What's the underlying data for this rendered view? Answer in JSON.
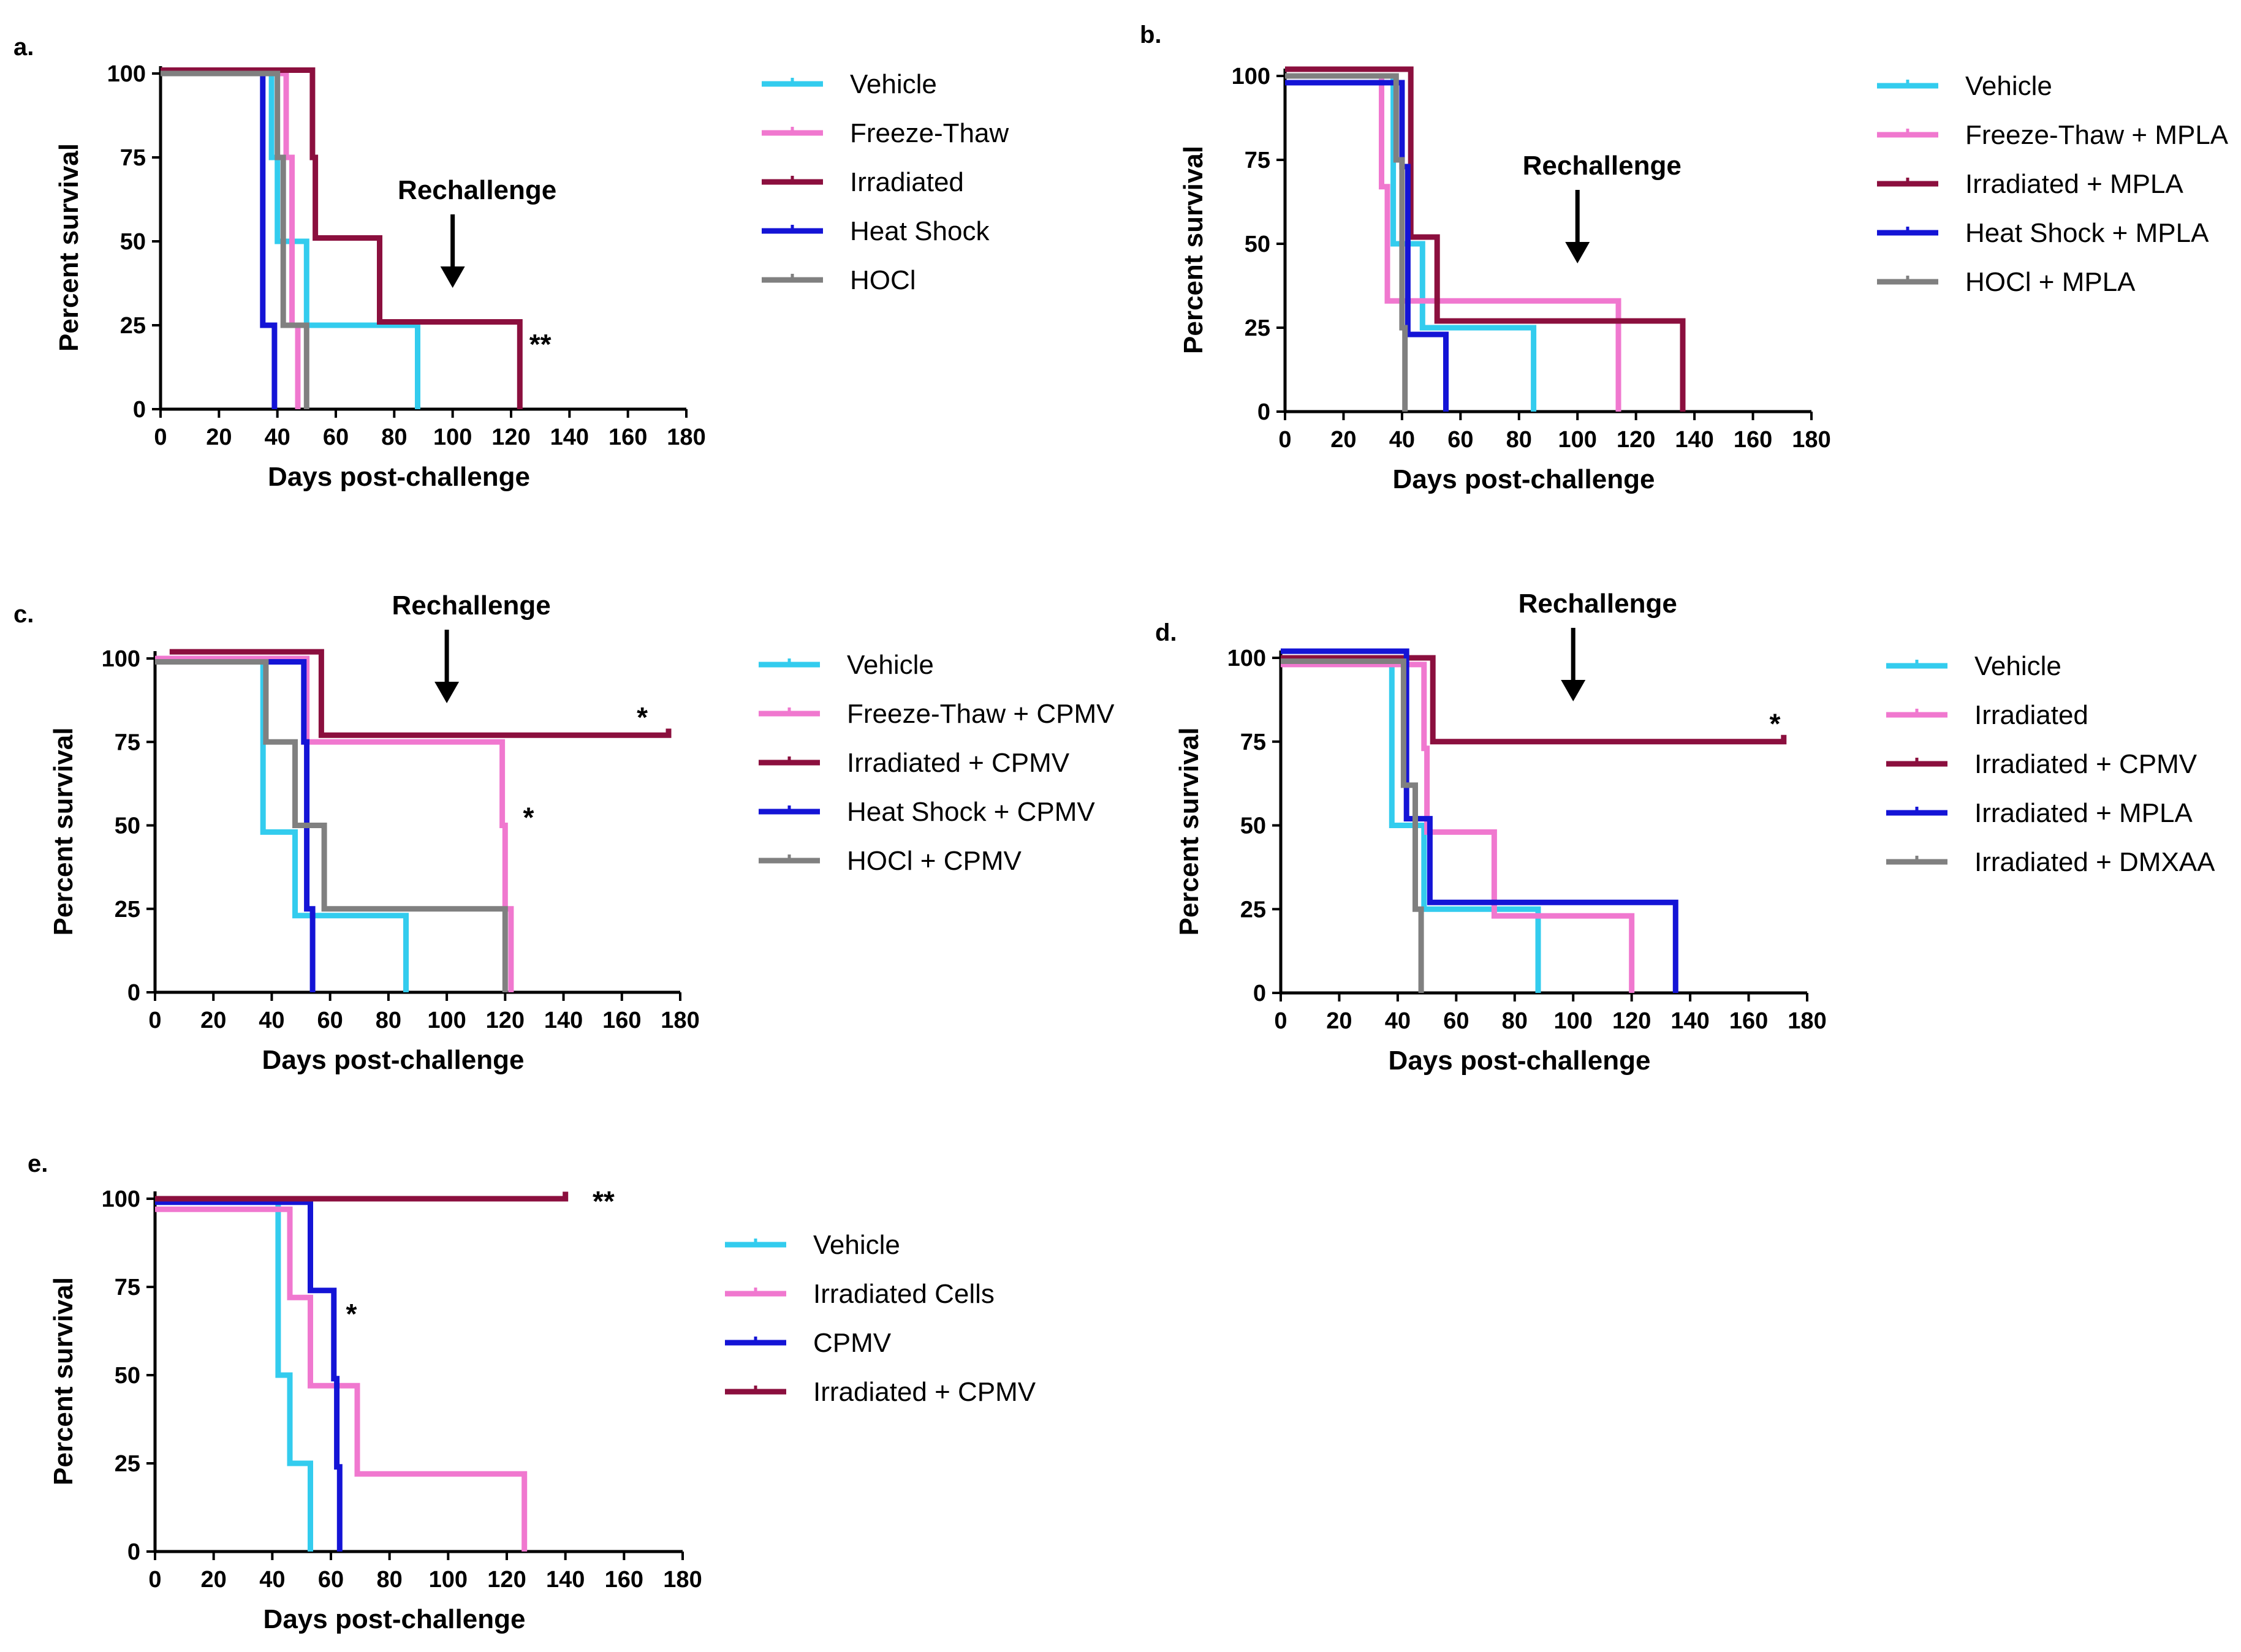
{
  "colors": {
    "cyan": "#33ccee",
    "pink": "#f078cf",
    "maroon": "#8b0f3e",
    "blue": "#1414d6",
    "gray": "#808080",
    "axis": "#000000"
  },
  "chart_data": [
    {
      "type": "line",
      "step": true,
      "panel": "a.",
      "xlabel": "Days post-challenge",
      "ylabel": "Percent survival",
      "xlim": [
        0,
        180
      ],
      "ylim": [
        0,
        100
      ],
      "xticks": [
        0,
        20,
        40,
        60,
        80,
        100,
        120,
        140,
        160,
        180
      ],
      "yticks": [
        0,
        25,
        50,
        75,
        100
      ],
      "xtick_labels": [
        "0",
        "20",
        "40",
        "60",
        "80",
        "100",
        "120",
        "140",
        "160",
        "180"
      ],
      "ytick_labels": [
        "0",
        "25",
        "50",
        "75",
        "100"
      ],
      "annotation": {
        "text": "Rechallenge",
        "x": 100
      },
      "significance": [
        {
          "text": "**",
          "x": 130,
          "y": 19
        }
      ],
      "series": [
        {
          "name": "Vehicle",
          "color": "cyan",
          "x": [
            0,
            38,
            38,
            40,
            40,
            50,
            50,
            88,
            88
          ],
          "y": [
            100,
            100,
            75,
            75,
            50,
            50,
            25,
            25,
            0
          ]
        },
        {
          "name": "Freeze-Thaw",
          "color": "pink",
          "x": [
            0,
            43,
            43,
            45,
            45,
            47,
            47
          ],
          "y": [
            100,
            100,
            75,
            75,
            25,
            25,
            0
          ]
        },
        {
          "name": "Irradiated",
          "color": "maroon",
          "x": [
            0,
            52,
            52,
            53,
            53,
            75,
            75,
            123,
            123
          ],
          "y": [
            101,
            101,
            75,
            75,
            51,
            51,
            26,
            26,
            0
          ]
        },
        {
          "name": "Heat Shock",
          "color": "blue",
          "x": [
            0,
            35,
            35,
            38,
            38,
            39,
            39
          ],
          "y": [
            100,
            100,
            25,
            25,
            25,
            25,
            0
          ]
        },
        {
          "name": "HOCl",
          "color": "gray",
          "x": [
            0,
            40,
            40,
            42,
            42,
            50,
            50
          ],
          "y": [
            100,
            100,
            75,
            75,
            25,
            25,
            0
          ]
        }
      ]
    },
    {
      "type": "line",
      "step": true,
      "panel": "b.",
      "xlabel": "Days post-challenge",
      "ylabel": "Percent survival",
      "xlim": [
        0,
        180
      ],
      "ylim": [
        0,
        100
      ],
      "xticks": [
        0,
        20,
        40,
        60,
        80,
        100,
        120,
        140,
        160,
        180
      ],
      "yticks": [
        0,
        25,
        50,
        75,
        100
      ],
      "xtick_labels": [
        "0",
        "20",
        "40",
        "60",
        "80",
        "100",
        "120",
        "140",
        "160",
        "180"
      ],
      "ytick_labels": [
        "0",
        "25",
        "50",
        "75",
        "100"
      ],
      "annotation": {
        "text": "Rechallenge",
        "x": 100
      },
      "significance": [],
      "series": [
        {
          "name": "Vehicle",
          "color": "cyan",
          "x": [
            0,
            37,
            37,
            47,
            47,
            85,
            85
          ],
          "y": [
            100,
            100,
            50,
            50,
            25,
            25,
            0
          ]
        },
        {
          "name": "Freeze-Thaw + MPLA",
          "color": "pink",
          "x": [
            0,
            33,
            33,
            35,
            35,
            114,
            114
          ],
          "y": [
            100,
            100,
            67,
            67,
            33,
            33,
            0
          ]
        },
        {
          "name": "Irradiated + MPLA",
          "color": "maroon",
          "x": [
            0,
            43,
            43,
            52,
            52,
            136,
            136
          ],
          "y": [
            102,
            102,
            52,
            52,
            27,
            27,
            0
          ]
        },
        {
          "name": "Heat Shock + MPLA",
          "color": "blue",
          "x": [
            0,
            40,
            40,
            42,
            42,
            55,
            55
          ],
          "y": [
            98,
            98,
            73,
            73,
            23,
            23,
            0
          ]
        },
        {
          "name": "HOCl + MPLA",
          "color": "gray",
          "x": [
            0,
            38,
            38,
            40,
            40,
            41,
            41
          ],
          "y": [
            100,
            100,
            75,
            75,
            25,
            25,
            0
          ]
        }
      ]
    },
    {
      "type": "line",
      "step": true,
      "panel": "c.",
      "xlabel": "Days post-challenge",
      "ylabel": "Percent survival",
      "xlim": [
        0,
        180
      ],
      "ylim": [
        0,
        100
      ],
      "xticks": [
        0,
        20,
        40,
        60,
        80,
        100,
        120,
        140,
        160,
        180
      ],
      "yticks": [
        0,
        25,
        50,
        75,
        100
      ],
      "xtick_labels": [
        "0",
        "20",
        "40",
        "60",
        "80",
        "100",
        "120",
        "140",
        "160",
        "180"
      ],
      "ytick_labels": [
        "0",
        "25",
        "50",
        "75",
        "100"
      ],
      "annotation": {
        "text": "Rechallenge",
        "x": 100
      },
      "significance": [
        {
          "text": "*",
          "x": 167,
          "y": 82
        },
        {
          "text": "*",
          "x": 128,
          "y": 52
        }
      ],
      "series": [
        {
          "name": "Vehicle",
          "color": "cyan",
          "x": [
            0,
            37,
            37,
            48,
            48,
            86,
            86
          ],
          "y": [
            99,
            99,
            48,
            48,
            23,
            23,
            0
          ]
        },
        {
          "name": "Freeze-Thaw + CPMV",
          "color": "pink",
          "x": [
            0,
            52,
            52,
            119,
            119,
            120,
            120,
            122,
            122
          ],
          "y": [
            100,
            100,
            75,
            75,
            50,
            50,
            25,
            25,
            0
          ]
        },
        {
          "name": "Irradiated + CPMV",
          "color": "maroon",
          "x": [
            5,
            57,
            57,
            176,
            176
          ],
          "y": [
            102,
            102,
            77,
            77,
            79
          ]
        },
        {
          "name": "Heat Shock + CPMV",
          "color": "blue",
          "x": [
            0,
            51,
            51,
            52,
            52,
            54,
            54
          ],
          "y": [
            99,
            99,
            75,
            75,
            25,
            25,
            0
          ]
        },
        {
          "name": "HOCl + CPMV",
          "color": "gray",
          "x": [
            0,
            38,
            38,
            48,
            48,
            58,
            58,
            120,
            120
          ],
          "y": [
            99,
            99,
            75,
            75,
            50,
            50,
            25,
            25,
            0
          ]
        }
      ]
    },
    {
      "type": "line",
      "step": true,
      "panel": "d.",
      "xlabel": "Days post-challenge",
      "ylabel": "Percent survival",
      "xlim": [
        0,
        180
      ],
      "ylim": [
        0,
        100
      ],
      "xticks": [
        0,
        20,
        40,
        60,
        80,
        100,
        120,
        140,
        160,
        180
      ],
      "yticks": [
        0,
        25,
        50,
        75,
        100
      ],
      "xtick_labels": [
        "0",
        "20",
        "40",
        "60",
        "80",
        "100",
        "120",
        "140",
        "160",
        "180"
      ],
      "ytick_labels": [
        "0",
        "25",
        "50",
        "75",
        "100"
      ],
      "annotation": {
        "text": "Rechallenge",
        "x": 100
      },
      "significance": [
        {
          "text": "*",
          "x": 169,
          "y": 80
        }
      ],
      "series": [
        {
          "name": "Vehicle",
          "color": "cyan",
          "x": [
            0,
            38,
            38,
            49,
            49,
            88,
            88
          ],
          "y": [
            100,
            100,
            50,
            50,
            25,
            25,
            0
          ]
        },
        {
          "name": "Irradiated",
          "color": "pink",
          "x": [
            0,
            49,
            49,
            50,
            50,
            73,
            73,
            120,
            120
          ],
          "y": [
            98,
            98,
            73,
            73,
            48,
            48,
            23,
            23,
            0
          ]
        },
        {
          "name": "Irradiated + CPMV",
          "color": "maroon",
          "x": [
            0,
            52,
            52,
            172,
            172
          ],
          "y": [
            100,
            100,
            75,
            75,
            77
          ]
        },
        {
          "name": "Irradiated + MPLA",
          "color": "blue",
          "x": [
            0,
            43,
            43,
            51,
            51,
            135,
            135
          ],
          "y": [
            102,
            102,
            52,
            52,
            27,
            27,
            0
          ]
        },
        {
          "name": "Irradiated + DMXAA",
          "color": "gray",
          "x": [
            0,
            42,
            42,
            46,
            46,
            48,
            48
          ],
          "y": [
            99,
            99,
            62,
            62,
            25,
            25,
            0
          ]
        }
      ]
    },
    {
      "type": "line",
      "step": true,
      "panel": "e.",
      "xlabel": "Days post-challenge",
      "ylabel": "Percent survival",
      "xlim": [
        0,
        180
      ],
      "ylim": [
        0,
        100
      ],
      "xticks": [
        0,
        20,
        40,
        60,
        80,
        100,
        120,
        140,
        160,
        180
      ],
      "yticks": [
        0,
        25,
        50,
        75,
        100
      ],
      "xtick_labels": [
        "0",
        "20",
        "40",
        "60",
        "80",
        "100",
        "120",
        "140",
        "160",
        "180"
      ],
      "ytick_labels": [
        "0",
        "25",
        "50",
        "75",
        "100"
      ],
      "annotation": null,
      "significance": [
        {
          "text": "**",
          "x": 153,
          "y": 99
        },
        {
          "text": "*",
          "x": 67,
          "y": 67
        }
      ],
      "series": [
        {
          "name": "Vehicle",
          "color": "cyan",
          "x": [
            0,
            42,
            42,
            46,
            46,
            53,
            53
          ],
          "y": [
            100,
            100,
            50,
            50,
            25,
            25,
            0
          ]
        },
        {
          "name": "Irradiated Cells",
          "color": "pink",
          "x": [
            0,
            46,
            46,
            53,
            53,
            69,
            69,
            126,
            126
          ],
          "y": [
            97,
            97,
            72,
            72,
            47,
            47,
            22,
            22,
            0
          ]
        },
        {
          "name": "CPMV",
          "color": "blue",
          "x": [
            0,
            53,
            53,
            61,
            61,
            62,
            62,
            63,
            63
          ],
          "y": [
            99,
            99,
            74,
            74,
            49,
            49,
            24,
            24,
            0
          ]
        },
        {
          "name": "Irradiated + CPMV",
          "color": "maroon",
          "x": [
            0,
            140,
            140
          ],
          "y": [
            100,
            100,
            102
          ]
        }
      ]
    }
  ]
}
